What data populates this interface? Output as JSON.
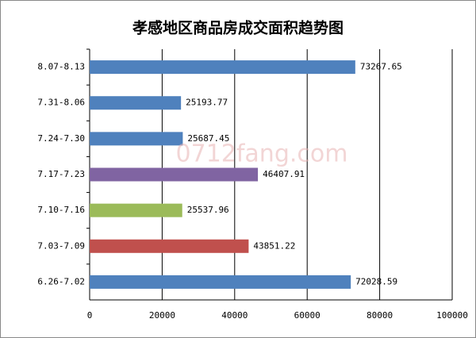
{
  "chart_data": {
    "type": "barh",
    "title": "孝感地区商品房成交面积趋势图",
    "categories": [
      "8.07-8.13",
      "7.31-8.06",
      "7.24-7.30",
      "7.17-7.23",
      "7.10-7.16",
      "7.03-7.09",
      "6.26-7.02"
    ],
    "values": [
      73267.65,
      25193.77,
      25687.45,
      46407.91,
      25537.96,
      43851.22,
      72028.59
    ],
    "colors": [
      "#4f81bd",
      "#4f81bd",
      "#4f81bd",
      "#8064a2",
      "#9bbb59",
      "#c0504d",
      "#4f81bd"
    ],
    "xlim": [
      0,
      100000
    ],
    "xticks": [
      0,
      20000,
      40000,
      60000,
      80000,
      100000
    ],
    "grid": true,
    "watermark": "0712fang.com"
  }
}
